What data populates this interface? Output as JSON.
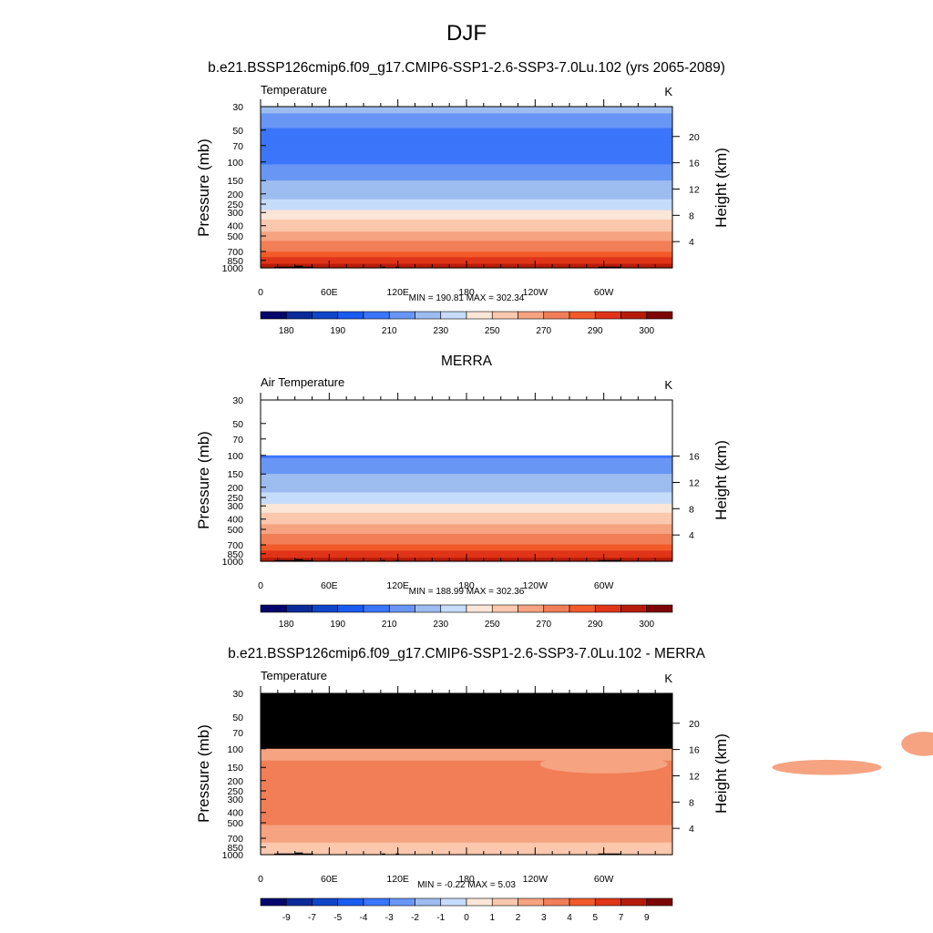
{
  "figure": {
    "title": "DJF"
  },
  "colors": {
    "abs_palette": [
      "#05056b",
      "#0a2a9a",
      "#0f45c8",
      "#1b5cf0",
      "#3b75fa",
      "#6996f5",
      "#9dbcf0",
      "#c6dcfb",
      "#fbe6d7",
      "#fbc8ae",
      "#f5a381",
      "#f17e57",
      "#f25a2b",
      "#e03518",
      "#b71c0a",
      "#7e0505"
    ],
    "diff_palette": [
      "#05056b",
      "#0a2a9a",
      "#0f45c8",
      "#1b5cf0",
      "#3b75fa",
      "#6996f5",
      "#9dbcf0",
      "#c6dcfb",
      "#fbe6d7",
      "#fbc8ae",
      "#f5a381",
      "#f17e57",
      "#f25a2b",
      "#e03518",
      "#b71c0a",
      "#7e0505"
    ],
    "masked": "#000000"
  },
  "chart_data": [
    {
      "type": "heatmap",
      "id": "model",
      "title": "b.e21.BSSP126cmip6.f09_g17.CMIP6-SSP1-2.6-SSP3-7.0Lu.102 (yrs 2065-2089)",
      "left_label": "Temperature",
      "units": "K",
      "ylabel": "Pressure (mb)",
      "ylabel_right": "Height (km)",
      "x_ticks": [
        "0",
        "60E",
        "120E",
        "180",
        "120W",
        "60W"
      ],
      "y_ticks": [
        "30",
        "50",
        "70",
        "100",
        "150",
        "200",
        "250",
        "300",
        "400",
        "500",
        "700",
        "850",
        "1000"
      ],
      "y_ticks_right": [
        "20",
        "16",
        "12",
        "8",
        "4"
      ],
      "stats": "MIN = 190.81  MAX = 302.34",
      "colorbar_labels": [
        "180",
        "190",
        "210",
        "230",
        "250",
        "270",
        "290",
        "300"
      ],
      "levels": [
        {
          "p": 30,
          "v": 212
        },
        {
          "p": 40,
          "v": 208
        },
        {
          "p": 50,
          "v": 198
        },
        {
          "p": 100,
          "v": 198
        },
        {
          "p": 120,
          "v": 205
        },
        {
          "p": 150,
          "v": 210
        },
        {
          "p": 200,
          "v": 215
        },
        {
          "p": 250,
          "v": 225
        },
        {
          "p": 300,
          "v": 232
        },
        {
          "p": 350,
          "v": 240
        },
        {
          "p": 450,
          "v": 250
        },
        {
          "p": 550,
          "v": 260
        },
        {
          "p": 700,
          "v": 270
        },
        {
          "p": 800,
          "v": 280
        },
        {
          "p": 900,
          "v": 288
        },
        {
          "p": 1000,
          "v": 295
        }
      ]
    },
    {
      "type": "heatmap",
      "id": "obs",
      "title": "MERRA",
      "left_label": "Air Temperature",
      "units": "K",
      "ylabel": "Pressure (mb)",
      "ylabel_right": "Height (km)",
      "x_ticks": [
        "0",
        "60E",
        "120E",
        "180",
        "120W",
        "60W"
      ],
      "y_ticks": [
        "30",
        "50",
        "70",
        "100",
        "150",
        "200",
        "250",
        "300",
        "400",
        "500",
        "700",
        "850",
        "1000"
      ],
      "y_ticks_right": [
        "16",
        "12",
        "8",
        "4"
      ],
      "stats": "MIN = 188.99  MAX = 302.36",
      "colorbar_labels": [
        "180",
        "190",
        "210",
        "230",
        "250",
        "270",
        "290",
        "300"
      ],
      "data_top_p": 100,
      "levels": [
        {
          "p": 100,
          "v": 198
        },
        {
          "p": 120,
          "v": 205
        },
        {
          "p": 150,
          "v": 210
        },
        {
          "p": 200,
          "v": 215
        },
        {
          "p": 250,
          "v": 225
        },
        {
          "p": 300,
          "v": 232
        },
        {
          "p": 350,
          "v": 240
        },
        {
          "p": 450,
          "v": 250
        },
        {
          "p": 550,
          "v": 260
        },
        {
          "p": 700,
          "v": 270
        },
        {
          "p": 800,
          "v": 280
        },
        {
          "p": 900,
          "v": 288
        },
        {
          "p": 1000,
          "v": 295
        }
      ]
    },
    {
      "type": "heatmap",
      "id": "diff",
      "title": "b.e21.BSSP126cmip6.f09_g17.CMIP6-SSP1-2.6-SSP3-7.0Lu.102 - MERRA",
      "left_label": "Temperature",
      "units": "K",
      "ylabel": "Pressure (mb)",
      "ylabel_right": "Height (km)",
      "x_ticks": [
        "0",
        "60E",
        "120E",
        "180",
        "120W",
        "60W"
      ],
      "y_ticks": [
        "30",
        "50",
        "70",
        "100",
        "150",
        "200",
        "250",
        "300",
        "400",
        "500",
        "700",
        "850",
        "1000"
      ],
      "y_ticks_right": [
        "20",
        "16",
        "12",
        "8",
        "4"
      ],
      "stats": "MIN =  -0.22  MAX =   5.03",
      "colorbar_labels": [
        "-9",
        "-7",
        "-5",
        "-4",
        "-3",
        "-2",
        "-1",
        "0",
        "1",
        "2",
        "3",
        "4",
        "5",
        "7",
        "9"
      ],
      "masked_above_p": 100,
      "levels": [
        {
          "p": 100,
          "v": 2.5
        },
        {
          "p": 150,
          "v": 3.3
        },
        {
          "p": 300,
          "v": 3.4
        },
        {
          "p": 500,
          "v": 3.1
        },
        {
          "p": 700,
          "v": 2.4
        },
        {
          "p": 850,
          "v": 1.6
        },
        {
          "p": 1000,
          "v": 1.2
        }
      ]
    }
  ]
}
